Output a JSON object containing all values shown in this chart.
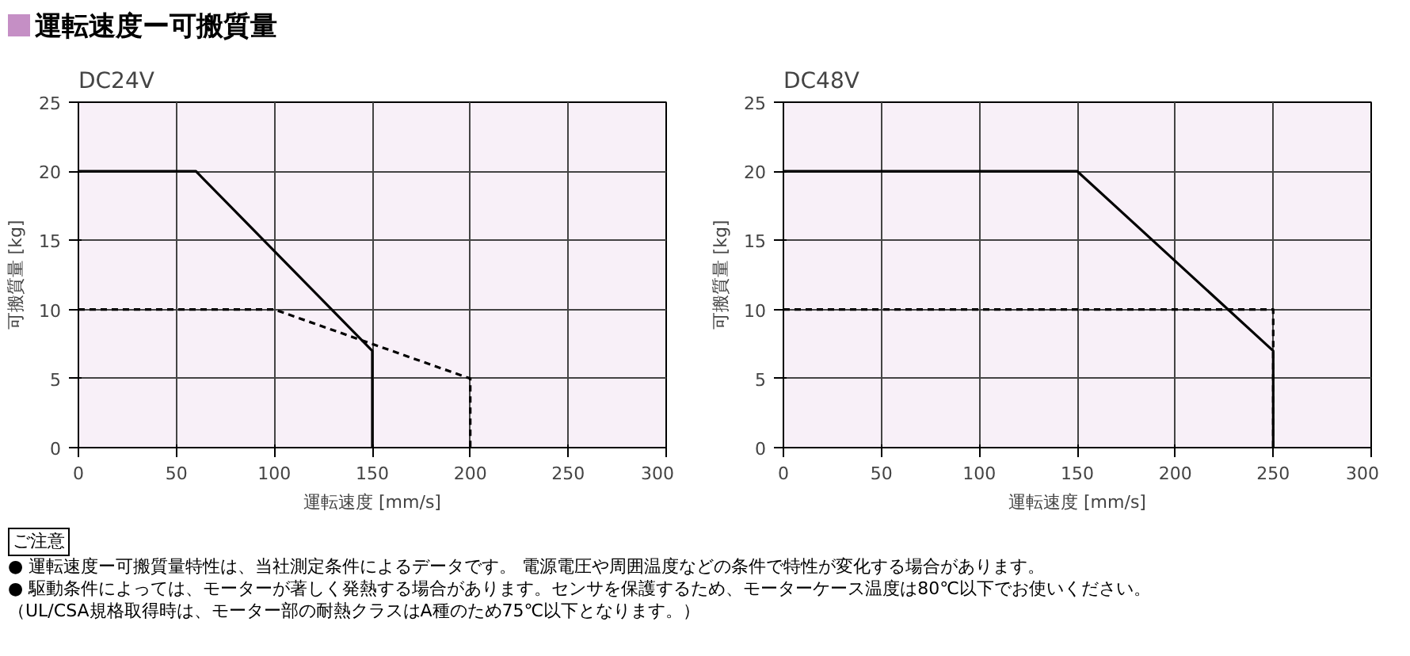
{
  "chart_data": [
    {
      "type": "other",
      "title": "運転速度ー可搬質量"
    },
    {
      "type": "line",
      "title": "DC24V",
      "xlabel": "運転速度 [mm/s]",
      "ylabel": "可搬質量 [kg]",
      "xlim": [
        0,
        300
      ],
      "ylim": [
        0,
        25
      ],
      "xticks": [
        0,
        50,
        100,
        150,
        200,
        250,
        300
      ],
      "yticks": [
        0,
        5,
        10,
        15,
        20,
        25
      ],
      "grid": true,
      "marker": "none",
      "series": [
        {
          "color": "#000000",
          "line_style": "dashed",
          "x": [
            0,
            100,
            200,
            200
          ],
          "values": [
            10,
            10,
            5,
            0
          ]
        },
        {
          "color": "#000000",
          "line_style": "solid",
          "x": [
            0,
            60,
            150,
            150
          ],
          "values": [
            20,
            20,
            7,
            0
          ]
        }
      ]
    },
    {
      "type": "line",
      "title": "DC48V",
      "xlabel": "運転速度 [mm/s]",
      "ylabel": "可搬質量 [kg]",
      "xlim": [
        0,
        300
      ],
      "ylim": [
        0,
        25
      ],
      "xticks": [
        0,
        50,
        100,
        150,
        200,
        250,
        300
      ],
      "yticks": [
        0,
        5,
        10,
        15,
        20,
        25
      ],
      "grid": true,
      "marker": "none",
      "series": [
        {
          "color": "#000000",
          "line_style": "dashed",
          "x": [
            0,
            250,
            250
          ],
          "values": [
            10,
            10,
            0
          ]
        },
        {
          "color": "#000000",
          "line_style": "solid",
          "x": [
            0,
            150,
            250,
            250
          ],
          "values": [
            20,
            20,
            7,
            0
          ]
        }
      ]
    },
    {
      "type": "other",
      "title": "ご注意",
      "annotations": [
        "● 運転速度ー可搬質量特性は、当社測定条件によるデータです。 電源電圧や周囲温度などの条件で特性が変化する場合があります。",
        "● 駆動条件によっては、モーターが著しく発熱する場合があります。センサを保護するため、モーターケース温度は80℃以下でお使いください。",
        "（UL/CSA規格取得時は、モーター部の耐熱クラスはA種のため75℃以下となります。）"
      ]
    }
  ]
}
